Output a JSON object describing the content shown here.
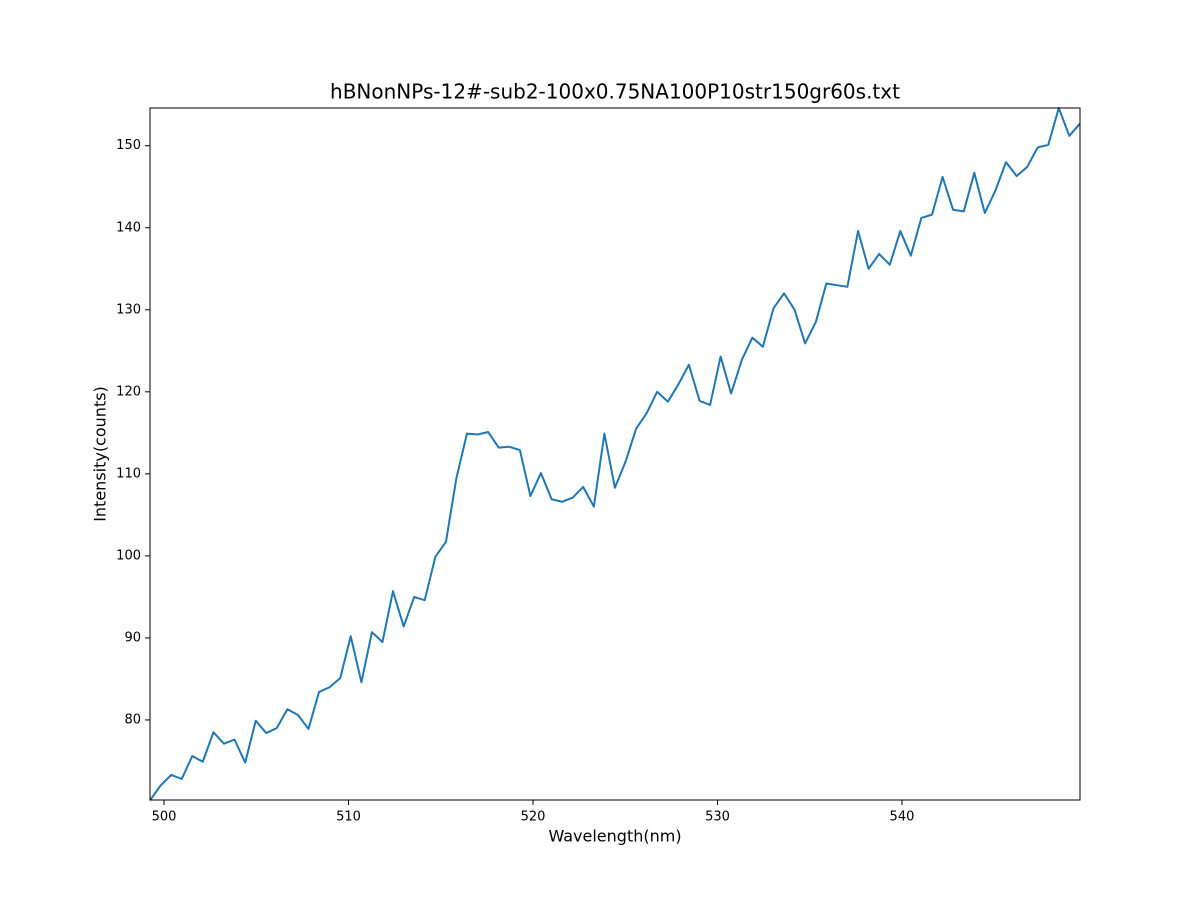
{
  "chart_data": {
    "type": "line",
    "title": "hBNonNPs-12#-sub2-100x0.75NA100P10str150gr60s.txt",
    "x_label": "Wavelength(nm)",
    "y_label": "Intensity(counts)",
    "x": [
      499.24,
      499.81,
      500.39,
      500.96,
      501.53,
      502.1,
      502.68,
      503.25,
      503.82,
      504.4,
      504.97,
      505.54,
      506.11,
      506.69,
      507.26,
      507.83,
      508.4,
      508.98,
      509.55,
      510.12,
      510.7,
      511.27,
      511.84,
      512.41,
      512.99,
      513.56,
      514.13,
      514.71,
      515.28,
      515.85,
      516.42,
      517.0,
      517.57,
      518.14,
      518.72,
      519.29,
      519.86,
      520.43,
      521.01,
      521.58,
      522.15,
      522.72,
      523.3,
      523.87,
      524.44,
      525.02,
      525.59,
      526.16,
      526.73,
      527.31,
      527.88,
      528.45,
      529.03,
      529.6,
      530.17,
      530.74,
      531.32,
      531.89,
      532.46,
      533.04,
      533.61,
      534.18,
      534.75,
      535.33,
      535.9,
      536.47,
      537.04,
      537.62,
      538.19,
      538.76,
      539.34,
      539.91,
      540.48,
      541.05,
      541.63,
      542.2,
      542.77,
      543.35,
      543.92,
      544.49,
      545.06,
      545.64,
      546.21,
      546.78,
      547.36,
      547.93,
      548.5,
      549.07,
      549.65
    ],
    "series": [
      {
        "name": "intensity",
        "color": "#1f77b4",
        "values": [
          70.2,
          72.0,
          73.3,
          72.8,
          75.6,
          74.9,
          78.5,
          77.1,
          77.6,
          74.8,
          79.9,
          78.4,
          79.0,
          81.3,
          80.6,
          78.9,
          83.4,
          84.0,
          85.1,
          90.2,
          84.6,
          90.7,
          89.5,
          95.7,
          91.4,
          95.0,
          94.6,
          99.9,
          101.7,
          109.5,
          114.9,
          114.8,
          115.1,
          113.2,
          113.3,
          112.9,
          107.3,
          110.1,
          106.9,
          106.6,
          107.1,
          108.4,
          106.0,
          114.9,
          108.3,
          111.5,
          115.5,
          117.4,
          120.0,
          118.8,
          120.9,
          123.3,
          118.9,
          118.4,
          124.3,
          119.8,
          123.9,
          126.6,
          125.5,
          130.2,
          132.0,
          130.0,
          125.9,
          128.5,
          133.2,
          133.0,
          132.8,
          139.6,
          135.0,
          136.8,
          135.5,
          139.6,
          136.6,
          141.2,
          141.6,
          146.2,
          142.2,
          142.0,
          146.7,
          141.8,
          144.5,
          148.0,
          146.3,
          147.4,
          149.8,
          150.1,
          154.6,
          151.2,
          152.7
        ]
      }
    ],
    "xlim": [
      499.24,
      549.65
    ],
    "ylim": [
      70.24,
      154.6
    ],
    "xticks": [
      500,
      510,
      520,
      530,
      540
    ],
    "yticks": [
      80,
      90,
      100,
      110,
      120,
      130,
      140,
      150
    ]
  }
}
